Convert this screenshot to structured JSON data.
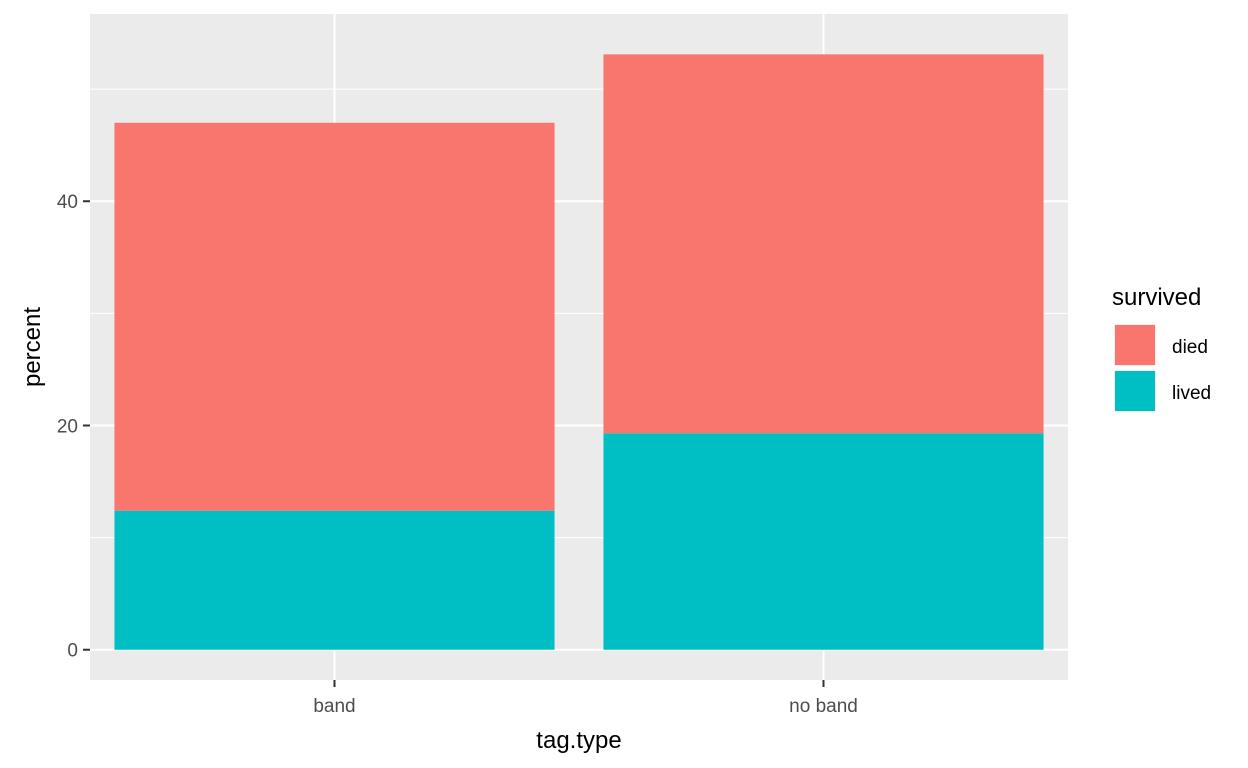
{
  "chart_data": {
    "type": "bar",
    "stacked": true,
    "xlabel": "tag.type",
    "ylabel": "percent",
    "categories": [
      "band",
      "no band"
    ],
    "series": [
      {
        "name": "lived",
        "values": [
          12.4,
          19.3
        ]
      },
      {
        "name": "died",
        "values": [
          34.6,
          33.8
        ]
      }
    ],
    "ylim": [
      -2.7,
      56.7
    ],
    "yticks": [
      0,
      20,
      40
    ],
    "grid": true,
    "legend": {
      "title": "survived",
      "position": "right",
      "entries": [
        "died",
        "lived"
      ]
    },
    "colors": {
      "died": "#F8766D",
      "lived": "#00BFC4",
      "panel": "#EBEBEB",
      "grid": "#FFFFFF"
    }
  }
}
